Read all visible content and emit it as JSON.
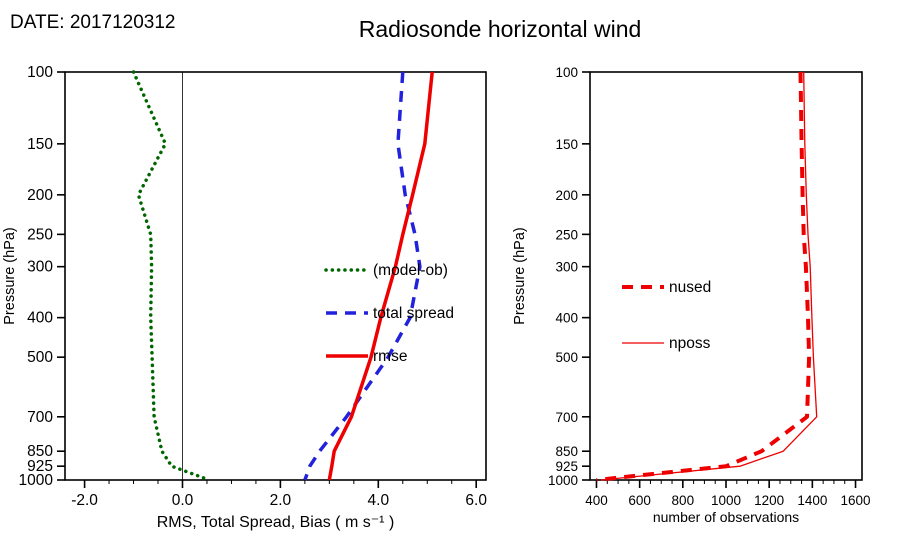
{
  "header": {
    "date_label": "DATE: 2017120312",
    "title": "Radiosonde horizontal wind"
  },
  "chart_data": [
    {
      "type": "line",
      "panel": "left",
      "xlabel": "RMS, Total Spread, Bias ( m s⁻¹ )",
      "ylabel": "Pressure (hPa)",
      "y_scale": "log",
      "ylim": [
        100,
        1000
      ],
      "y_ticks": [
        100,
        150,
        200,
        250,
        300,
        400,
        500,
        700,
        850,
        925,
        1000
      ],
      "xlim": [
        -2.4,
        6.2
      ],
      "x_ticks": [
        -2,
        0,
        2,
        4,
        6
      ],
      "x_tick_labels": [
        "-2.0",
        "0.0",
        "2.0",
        "4.0",
        "6.0"
      ],
      "x_minor_step": 0.5,
      "zero_line": true,
      "grid": false,
      "pressure_levels": [
        100,
        150,
        200,
        250,
        300,
        400,
        500,
        700,
        850,
        925,
        1000
      ],
      "series": [
        {
          "name": "(model-ob)",
          "color": "#006600",
          "style": "dotted",
          "width": 3.5,
          "values": [
            -1.0,
            -0.35,
            -0.9,
            -0.65,
            -0.63,
            -0.65,
            -0.62,
            -0.58,
            -0.42,
            -0.22,
            0.55
          ]
        },
        {
          "name": "total spread",
          "color": "#2222dd",
          "style": "dashed",
          "width": 3.5,
          "values": [
            4.5,
            4.4,
            4.55,
            4.75,
            4.85,
            4.65,
            4.2,
            3.35,
            2.8,
            2.6,
            2.5
          ]
        },
        {
          "name": "rmse",
          "color": "#ee0000",
          "style": "solid",
          "width": 3.5,
          "values": [
            5.1,
            4.95,
            4.7,
            4.5,
            4.35,
            4.05,
            3.85,
            3.45,
            3.1,
            3.05,
            3.0
          ]
        }
      ],
      "legend": {
        "position": "middle-right",
        "labels": [
          "(model-ob)",
          "total spread",
          "rmse"
        ]
      }
    },
    {
      "type": "line",
      "panel": "right",
      "xlabel": "number of observations",
      "ylabel": "Pressure (hPa)",
      "y_scale": "log",
      "ylim": [
        100,
        1000
      ],
      "y_ticks": [
        100,
        150,
        200,
        250,
        300,
        400,
        500,
        700,
        850,
        925,
        1000
      ],
      "xlim": [
        370,
        1630
      ],
      "x_ticks": [
        400,
        600,
        800,
        1000,
        1200,
        1400,
        1600
      ],
      "x_tick_labels": [
        "400",
        "600",
        "800",
        "1000",
        "1200",
        "1400",
        "1600"
      ],
      "x_minor_step": 50,
      "zero_line": false,
      "grid": false,
      "pressure_levels": [
        100,
        150,
        200,
        250,
        300,
        400,
        500,
        700,
        850,
        925,
        1000
      ],
      "series": [
        {
          "name": "nused",
          "color": "#ee0000",
          "style": "dashed",
          "width": 4,
          "values": [
            1345,
            1350,
            1355,
            1360,
            1370,
            1380,
            1385,
            1375,
            1165,
            1000,
            400
          ]
        },
        {
          "name": "nposs",
          "color": "#ee0000",
          "style": "solid",
          "width": 1.3,
          "values": [
            1360,
            1365,
            1372,
            1380,
            1390,
            1398,
            1405,
            1420,
            1265,
            1065,
            420
          ]
        }
      ],
      "legend": {
        "position": "middle-left",
        "labels": [
          "nused",
          "nposs"
        ]
      }
    }
  ]
}
